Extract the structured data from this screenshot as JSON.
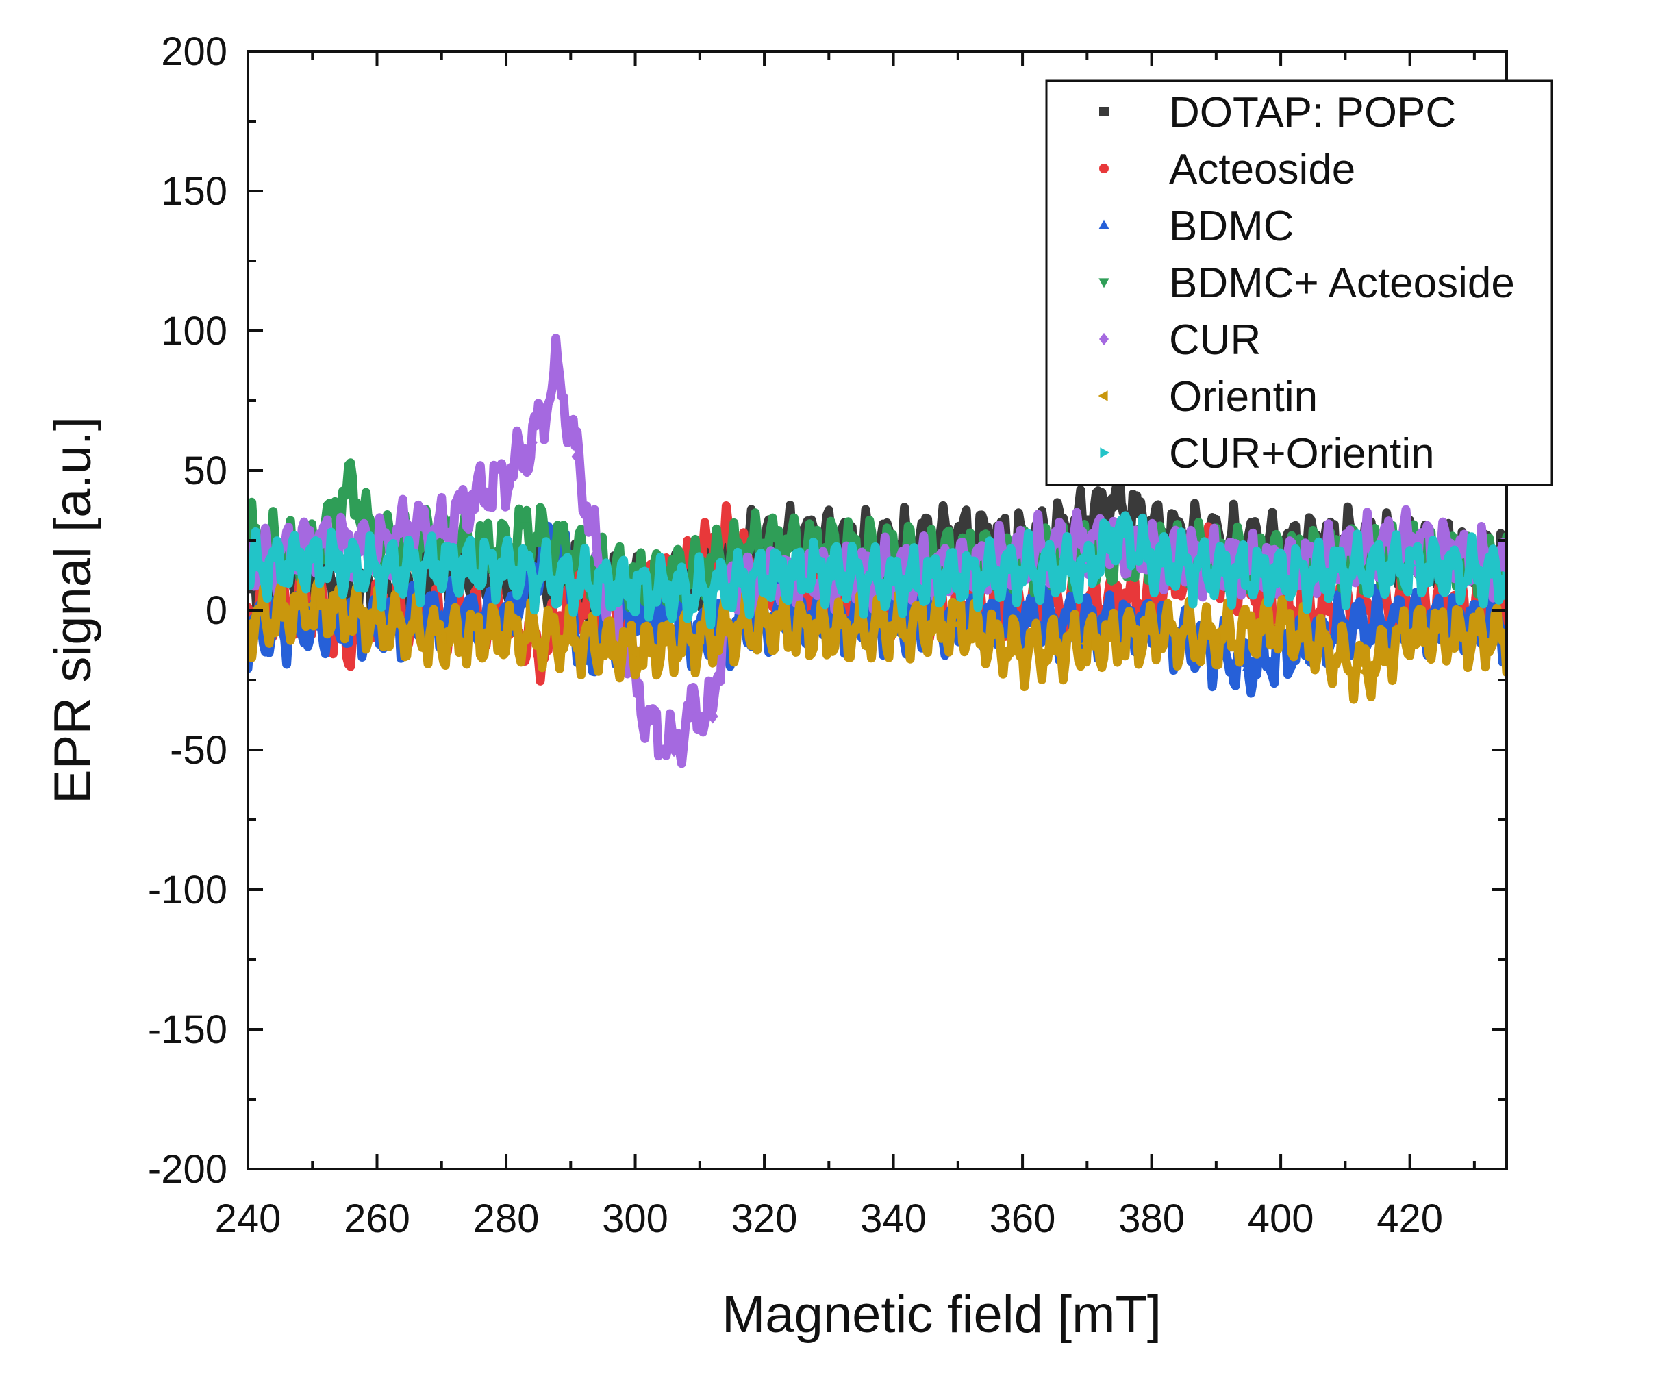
{
  "chart_data": {
    "type": "scatter",
    "xlabel": "Magnetic field [mT]",
    "ylabel": "EPR signal [a.u.]",
    "xlim": [
      240,
      435
    ],
    "ylim": [
      -200,
      200
    ],
    "x_ticks": [
      240,
      260,
      280,
      300,
      320,
      340,
      360,
      380,
      400,
      420
    ],
    "y_ticks": [
      200,
      150,
      100,
      50,
      0,
      -50,
      -100,
      -150,
      -200
    ],
    "grid": false,
    "legend_position": "top-right",
    "series": [
      {
        "name": "DOTAP: POPC",
        "color": "#3a3a3a",
        "marker": "square",
        "x": [
          240,
          250,
          260,
          270,
          280,
          290,
          300,
          305,
          310,
          315,
          320,
          330,
          340,
          350,
          360,
          370,
          375,
          380,
          390,
          400,
          410,
          420,
          435
        ],
        "y": [
          8,
          10,
          6,
          12,
          10,
          12,
          8,
          10,
          12,
          22,
          24,
          26,
          23,
          27,
          24,
          32,
          40,
          29,
          25,
          23,
          25,
          22,
          18
        ]
      },
      {
        "name": "Acteoside",
        "color": "#e8383a",
        "marker": "circle",
        "x": [
          240,
          250,
          256,
          260,
          270,
          280,
          285,
          290,
          300,
          314,
          320,
          340,
          360,
          380,
          388,
          400,
          420,
          435
        ],
        "y": [
          0,
          2,
          -12,
          0,
          -3,
          -2,
          -16,
          4,
          2,
          26,
          6,
          2,
          0,
          5,
          20,
          0,
          2,
          0
        ]
      },
      {
        "name": "BDMC",
        "color": "#2660d8",
        "marker": "triangle-up",
        "x": [
          240,
          250,
          260,
          270,
          280,
          288,
          292,
          300,
          310,
          320,
          340,
          360,
          380,
          395,
          410,
          420,
          435
        ],
        "y": [
          -8,
          -5,
          -6,
          -2,
          -4,
          28,
          -18,
          0,
          -10,
          -3,
          -5,
          -4,
          -6,
          -20,
          -6,
          -4,
          -6
        ]
      },
      {
        "name": "BDMC+ Acteoside",
        "color": "#2f9e57",
        "marker": "triangle-down",
        "x": [
          240,
          245,
          250,
          256,
          260,
          270,
          280,
          283,
          290,
          300,
          310,
          320,
          340,
          360,
          380,
          400,
          420,
          435
        ],
        "y": [
          28,
          22,
          20,
          45,
          22,
          25,
          22,
          30,
          20,
          10,
          15,
          24,
          20,
          18,
          20,
          18,
          20,
          15
        ]
      },
      {
        "name": "CUR",
        "color": "#a569e0",
        "marker": "diamond",
        "x": [
          240,
          250,
          260,
          265,
          270,
          275,
          280,
          284,
          288,
          291,
          294,
          298,
          302,
          306,
          309,
          312,
          314,
          318,
          330,
          350,
          370,
          380,
          400,
          420,
          435
        ],
        "y": [
          15,
          24,
          22,
          30,
          28,
          40,
          48,
          60,
          86,
          55,
          20,
          -10,
          -40,
          -50,
          -35,
          -38,
          5,
          10,
          12,
          15,
          25,
          20,
          15,
          25,
          15
        ]
      },
      {
        "name": "Orientin",
        "color": "#c9970d",
        "marker": "triangle-left",
        "x": [
          240,
          250,
          260,
          270,
          280,
          290,
          300,
          310,
          320,
          330,
          340,
          350,
          360,
          370,
          380,
          390,
          400,
          413,
          420,
          435
        ],
        "y": [
          -5,
          2,
          -4,
          -10,
          -8,
          -10,
          -15,
          -10,
          -5,
          -8,
          -6,
          -5,
          -15,
          -12,
          -8,
          -10,
          -5,
          -22,
          -8,
          -10
        ]
      },
      {
        "name": "CUR+Orientin",
        "color": "#22c4c8",
        "marker": "triangle-right",
        "x": [
          240,
          250,
          260,
          270,
          280,
          290,
          300,
          310,
          320,
          330,
          340,
          350,
          360,
          370,
          375,
          380,
          390,
          400,
          410,
          420,
          435
        ],
        "y": [
          15,
          18,
          14,
          16,
          15,
          10,
          8,
          6,
          12,
          14,
          10,
          12,
          14,
          15,
          28,
          18,
          14,
          12,
          14,
          16,
          12
        ]
      }
    ]
  }
}
